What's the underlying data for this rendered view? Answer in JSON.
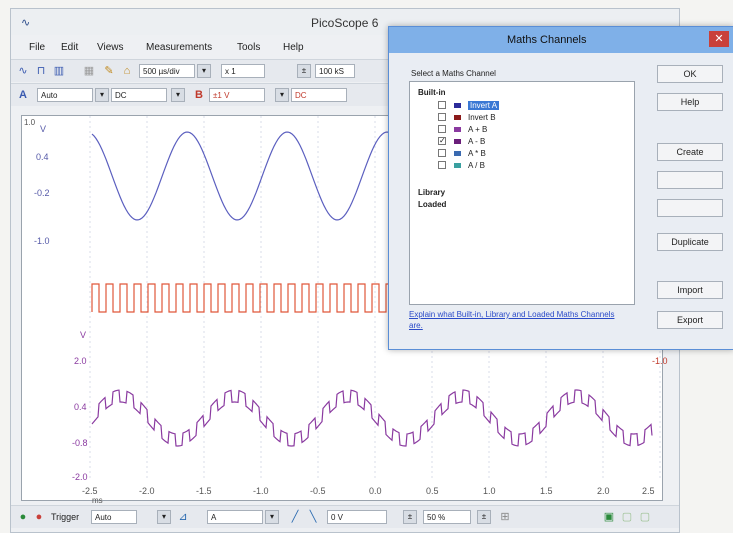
{
  "window": {
    "title": "PicoScope 6",
    "icon": "picoscope-icon"
  },
  "menu": [
    "File",
    "Edit",
    "Views",
    "Measurements",
    "Tools",
    "Help"
  ],
  "toolbar1": {
    "timebase": "500 µs/div",
    "zoom": "x 1",
    "samples": "100 kS"
  },
  "toolbar2": {
    "chA_range": "Auto",
    "chA_coupling": "DC",
    "chB_range": "±1 V",
    "chB_coupling": "DC",
    "chA_label": "A",
    "chB_label": "B"
  },
  "scope": {
    "corner_label": "1.0",
    "left_axis_a": {
      "unit": "V",
      "ticks": [
        "0.4",
        "-0.2",
        "-1.0"
      ]
    },
    "left_axis_b": {
      "unit": "V",
      "ticks": [
        "2.0",
        "0.4",
        "-0.8",
        "-2.0"
      ]
    },
    "right_axis_b": {
      "tick": "-1.0"
    },
    "x_ticks": [
      "-2.5",
      "-2.0",
      "-1.5",
      "-1.0",
      "-0.5",
      "0.0",
      "0.5",
      "1.0",
      "1.5",
      "2.0",
      "2.5"
    ],
    "x_unit": "ms",
    "colors": {
      "ch_a": "#5b5fbf",
      "ch_b": "#e0573a",
      "math": "#8a3aa0"
    }
  },
  "bottombar": {
    "trigger_label": "Trigger",
    "trigger_mode": "Auto",
    "trigger_source": "A",
    "level": "0 V",
    "pretrigger": "50 %"
  },
  "dialog": {
    "title": "Maths Channels",
    "select_label": "Select a Maths Channel",
    "groups": {
      "builtin": "Built-in",
      "library": "Library",
      "loaded": "Loaded"
    },
    "items": [
      {
        "label": "Invert A",
        "checked": false,
        "selected": true,
        "color": "#2b2b9a"
      },
      {
        "label": "Invert B",
        "checked": false,
        "selected": false,
        "color": "#8b1a1a"
      },
      {
        "label": "A + B",
        "checked": false,
        "selected": false,
        "color": "#8a3aa0"
      },
      {
        "label": "A - B",
        "checked": true,
        "selected": false,
        "color": "#6a1e7a"
      },
      {
        "label": "A * B",
        "checked": false,
        "selected": false,
        "color": "#3a6ab0"
      },
      {
        "label": "A / B",
        "checked": false,
        "selected": false,
        "color": "#3aa0a0"
      }
    ],
    "link": "Explain what Built-in, Library and Loaded Maths Channels are.",
    "buttons": {
      "ok": "OK",
      "help": "Help",
      "create": "Create",
      "duplicate": "Duplicate",
      "import": "Import",
      "export": "Export"
    }
  }
}
